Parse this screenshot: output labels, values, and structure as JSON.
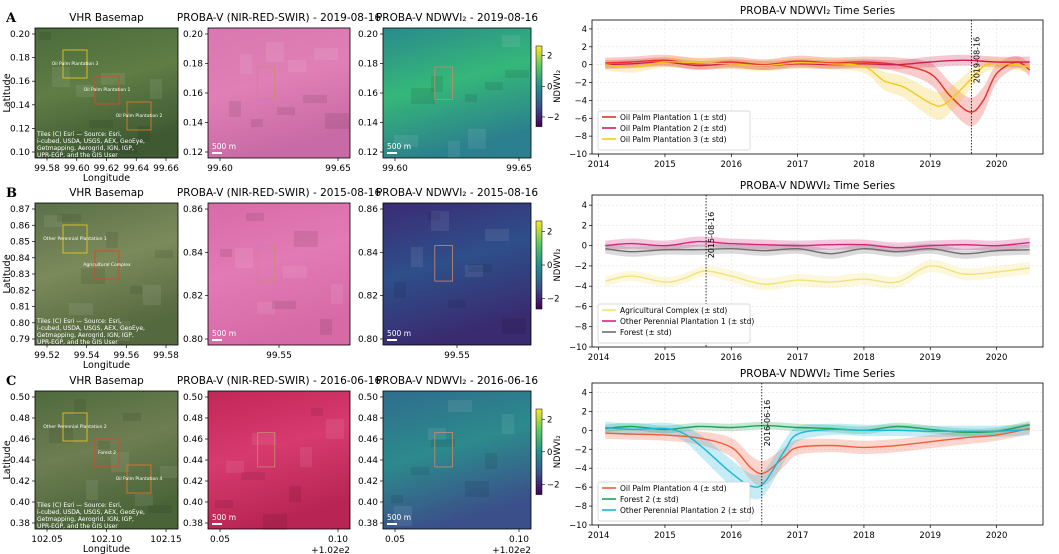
{
  "rows": [
    {
      "label": "A",
      "basemap": {
        "title": "VHR Basemap",
        "yticks": [
          "0.20",
          "0.18",
          "0.16",
          "0.14",
          "0.12",
          "0.10"
        ],
        "xticks": [
          "99.58",
          "99.60",
          "99.62",
          "99.64",
          "99.66"
        ],
        "xlabel": "Longitude",
        "ylabel": "Latitude",
        "attribution": "Tiles (C) Esri — Source: Esri, i-cubed, USDA, USGS, AEX, GeoEye, Getmapping, Aerogrid, IGN, IGP, UPR-EGP, and the GIS User Community",
        "overlay_labels": [
          "Oil Palm Plantation 3",
          "Oil Palm Plantation 1",
          "Oil Palm Plantation 2"
        ],
        "colors": {
          "top": "#4a6b3a",
          "mid": "#5f7d45",
          "bottom": "#3f5a33"
        }
      },
      "falsecolor": {
        "title": "PROBA-V (NIR-RED-SWIR) - 2019-08-16",
        "yticks": [
          "0.20",
          "0.18",
          "0.16",
          "0.14",
          "0.12"
        ],
        "xticks": [
          "99.60",
          "99.65"
        ],
        "offset": "",
        "scalebar": "500 m",
        "colors": {
          "top": "#d978b0",
          "mid": "#e07fb6",
          "bottom": "#c86aa5"
        }
      },
      "ndwvi": {
        "title": "PROBA-V NDWVI₂ - 2019-08-16",
        "yticks": [
          "0.20",
          "0.18",
          "0.16",
          "0.14",
          "0.12"
        ],
        "xticks": [
          "99.60",
          "99.65"
        ],
        "offset": "",
        "scalebar": "500 m",
        "colors": {
          "top": "#2a8a8c",
          "mid": "#35b779",
          "bottom": "#2c7f8e"
        }
      },
      "colorbar": {
        "label": "NDWVI₂",
        "ticks": [
          "2",
          "0",
          "−2"
        ]
      }
    },
    {
      "label": "B",
      "basemap": {
        "title": "VHR Basemap",
        "yticks": [
          "0.87",
          "0.86",
          "0.85",
          "0.84",
          "0.83",
          "0.82",
          "0.81",
          "0.80",
          "0.79"
        ],
        "xticks": [
          "99.52",
          "99.54",
          "99.56",
          "99.58"
        ],
        "xlabel": "Longitude",
        "ylabel": "Latitude",
        "attribution": "Tiles (C) Esri — Source: Esri, i-cubed, USDA, USGS, AEX, GeoEye, Getmapping, Aerogrid, IGN, IGP, UPR-EGP, and the GIS User Community",
        "overlay_labels": [
          "Other Perennial Plantation 1",
          "Agricultural Complex"
        ],
        "colors": {
          "top": "#5a7048",
          "mid": "#7b8a5a",
          "bottom": "#55693f"
        }
      },
      "falsecolor": {
        "title": "PROBA-V (NIR-RED-SWIR) - 2015-08-16",
        "yticks": [
          "0.86",
          "0.84",
          "0.82",
          "0.80"
        ],
        "xticks": [
          "99.55"
        ],
        "offset": "",
        "scalebar": "500 m",
        "colors": {
          "top": "#d86aa8",
          "mid": "#e27ab5",
          "bottom": "#d66aa6"
        }
      },
      "ndwvi": {
        "title": "PROBA-V NDWVI₂ - 2015-08-16",
        "yticks": [
          "0.86",
          "0.84",
          "0.82",
          "0.80"
        ],
        "xticks": [
          "99.55"
        ],
        "offset": "",
        "scalebar": "500 m",
        "colors": {
          "top": "#3b2b74",
          "mid": "#2e4f8a",
          "bottom": "#3a2a70"
        }
      },
      "colorbar": {
        "label": "NDWVI₂",
        "ticks": [
          "2",
          "0",
          "−2"
        ]
      }
    },
    {
      "label": "C",
      "basemap": {
        "title": "VHR Basemap",
        "yticks": [
          "0.50",
          "0.48",
          "0.46",
          "0.44",
          "0.42",
          "0.40",
          "0.38"
        ],
        "xticks": [
          "102.05",
          "102.10",
          "102.15"
        ],
        "xlabel": "Longitude",
        "ylabel": "Latitude",
        "attribution": "Tiles (C) Esri — Source: Esri, i-cubed, USDA, USGS, AEX, GeoEye, Getmapping, Aerogrid, IGN, IGP, UPR-EGP, and the GIS User Community",
        "overlay_labels": [
          "Other Perennial Plantation 2",
          "Forest 2",
          "Oil Palm Plantation 4"
        ],
        "colors": {
          "top": "#4f6a3c",
          "mid": "#6d7e52",
          "bottom": "#4a6438"
        }
      },
      "falsecolor": {
        "title": "PROBA-V (NIR-RED-SWIR) - 2016-06-16",
        "yticks": [
          "0.50",
          "0.48",
          "0.46",
          "0.44",
          "0.42",
          "0.40",
          "0.38"
        ],
        "xticks": [
          "0.05",
          "0.10"
        ],
        "offset": "+1.02e2",
        "scalebar": "500 m",
        "colors": {
          "top": "#c2275a",
          "mid": "#d63a6e",
          "bottom": "#b82555"
        }
      },
      "ndwvi": {
        "title": "PROBA-V NDWVI₂ - 2016-06-16",
        "yticks": [
          "0.50",
          "0.48",
          "0.46",
          "0.44",
          "0.42",
          "0.40",
          "0.38"
        ],
        "xticks": [
          "0.05",
          "0.10"
        ],
        "offset": "+1.02e2",
        "scalebar": "500 m",
        "colors": {
          "top": "#2f6d8e",
          "mid": "#2c8a8c",
          "bottom": "#3b4f8a"
        }
      },
      "colorbar": {
        "label": "NDWVI₂",
        "ticks": [
          "2",
          "0",
          "−2"
        ]
      }
    }
  ],
  "chart_data": [
    {
      "type": "line",
      "title": "PROBA-V NDWVI₂ Time Series",
      "xlim": [
        2013.9,
        2020.7
      ],
      "ylim": [
        -10,
        5
      ],
      "xticks": [
        2014,
        2015,
        2016,
        2017,
        2018,
        2019,
        2020
      ],
      "yticks": [
        -10,
        -8,
        -6,
        -4,
        -2,
        0,
        2,
        4
      ],
      "grid": true,
      "legend_position": "bottom-left",
      "vline": {
        "x": 2019.62,
        "label": "2019-08-16"
      },
      "series": [
        {
          "name": "Oil Palm Plantation 1 (± std)",
          "color": "#e8312a",
          "x": [
            2014.1,
            2014.5,
            2015.0,
            2015.5,
            2016.0,
            2016.5,
            2017.0,
            2017.5,
            2018.0,
            2018.5,
            2019.0,
            2019.3,
            2019.6,
            2019.8,
            2020.0,
            2020.3,
            2020.5
          ],
          "y": [
            0.2,
            0.3,
            0.5,
            0.1,
            0.3,
            0.0,
            0.4,
            0.2,
            0.3,
            0.0,
            -1.0,
            -3.5,
            -5.3,
            -4.0,
            -1.0,
            0.3,
            -0.6
          ],
          "std": [
            0.6,
            0.6,
            0.6,
            0.6,
            0.6,
            0.6,
            0.6,
            0.6,
            0.6,
            0.8,
            1.2,
            1.5,
            1.6,
            1.5,
            1.0,
            0.7,
            0.7
          ]
        },
        {
          "name": "Oil Palm Plantation 2 (± std)",
          "color": "#d1204f",
          "x": [
            2014.1,
            2014.5,
            2015.0,
            2015.5,
            2016.0,
            2016.5,
            2017.0,
            2017.5,
            2018.0,
            2018.5,
            2019.0,
            2019.5,
            2020.0,
            2020.5
          ],
          "y": [
            0.0,
            0.1,
            0.3,
            -0.1,
            0.1,
            -0.1,
            0.1,
            0.0,
            0.1,
            0.0,
            0.3,
            0.5,
            0.3,
            0.3
          ],
          "std": [
            0.5,
            0.5,
            0.5,
            0.5,
            0.5,
            0.5,
            0.5,
            0.5,
            0.5,
            0.5,
            0.6,
            0.6,
            0.6,
            0.6
          ]
        },
        {
          "name": "Oil Palm Plantation 3 (± std)",
          "color": "#f2c91c",
          "x": [
            2014.1,
            2014.5,
            2015.0,
            2015.5,
            2016.0,
            2016.5,
            2017.0,
            2017.5,
            2018.0,
            2018.3,
            2018.6,
            2019.0,
            2019.2,
            2019.5,
            2019.8,
            2020.0,
            2020.3,
            2020.5
          ],
          "y": [
            0.0,
            -0.3,
            0.3,
            0.2,
            0.1,
            -0.1,
            0.2,
            0.1,
            -0.2,
            -1.8,
            -2.5,
            -4.3,
            -4.5,
            -2.5,
            -0.2,
            0.1,
            0.0,
            -0.3
          ],
          "std": [
            0.6,
            0.6,
            0.6,
            0.6,
            0.6,
            0.6,
            0.6,
            0.6,
            0.7,
            1.0,
            1.2,
            1.5,
            1.5,
            1.2,
            0.8,
            0.6,
            0.6,
            0.6
          ]
        }
      ]
    },
    {
      "type": "line",
      "title": "PROBA-V NDWVI₂ Time Series",
      "xlim": [
        2013.9,
        2020.7
      ],
      "ylim": [
        -10,
        5
      ],
      "xticks": [
        2014,
        2015,
        2016,
        2017,
        2018,
        2019,
        2020
      ],
      "yticks": [
        -10,
        -8,
        -6,
        -4,
        -2,
        0,
        2,
        4
      ],
      "grid": true,
      "legend_position": "bottom-left",
      "vline": {
        "x": 2015.62,
        "label": "2015-08-16"
      },
      "series": [
        {
          "name": "Agricultural Complex (± std)",
          "color": "#f3e27a",
          "x": [
            2014.1,
            2014.5,
            2015.0,
            2015.3,
            2015.6,
            2016.0,
            2016.5,
            2017.0,
            2017.5,
            2018.0,
            2018.5,
            2019.0,
            2019.5,
            2020.0,
            2020.5
          ],
          "y": [
            -3.5,
            -3.0,
            -3.6,
            -3.2,
            -2.5,
            -3.0,
            -3.8,
            -3.4,
            -3.6,
            -3.3,
            -3.6,
            -2.0,
            -2.8,
            -2.6,
            -2.2
          ],
          "std": [
            0.5,
            0.5,
            0.5,
            0.5,
            0.5,
            0.6,
            0.6,
            0.6,
            0.6,
            0.6,
            0.6,
            0.6,
            0.6,
            0.6,
            0.6
          ]
        },
        {
          "name": "Other Perennial Plantation 1 (± std)",
          "color": "#d3277d",
          "x": [
            2014.1,
            2014.5,
            2015.0,
            2015.5,
            2016.0,
            2016.5,
            2017.0,
            2017.5,
            2018.0,
            2018.5,
            2019.0,
            2019.5,
            2020.0,
            2020.5
          ],
          "y": [
            0.0,
            0.2,
            0.0,
            0.4,
            0.2,
            0.1,
            0.0,
            0.1,
            0.1,
            -0.2,
            0.0,
            0.1,
            0.0,
            0.3
          ],
          "std": [
            0.5,
            0.5,
            0.5,
            0.5,
            0.5,
            0.5,
            0.5,
            0.5,
            0.5,
            0.5,
            0.5,
            0.5,
            0.5,
            0.5
          ]
        },
        {
          "name": "Forest (± std)",
          "color": "#6e6e6e",
          "x": [
            2014.1,
            2014.5,
            2015.0,
            2015.5,
            2016.0,
            2016.5,
            2017.0,
            2017.5,
            2018.0,
            2018.5,
            2019.0,
            2019.5,
            2020.0,
            2020.5
          ],
          "y": [
            -0.3,
            -0.6,
            -0.4,
            -0.4,
            -0.3,
            -0.5,
            -0.3,
            -0.8,
            -0.3,
            -0.6,
            -0.3,
            -0.8,
            -0.5,
            -0.4
          ],
          "std": [
            0.5,
            0.5,
            0.5,
            0.5,
            0.5,
            0.5,
            0.5,
            0.5,
            0.5,
            0.5,
            0.5,
            0.5,
            0.5,
            0.5
          ]
        }
      ]
    },
    {
      "type": "line",
      "title": "PROBA-V NDWVI₂ Time Series",
      "xlim": [
        2013.9,
        2020.7
      ],
      "ylim": [
        -10,
        5
      ],
      "xticks": [
        2014,
        2015,
        2016,
        2017,
        2018,
        2019,
        2020
      ],
      "yticks": [
        -10,
        -8,
        -6,
        -4,
        -2,
        0,
        2,
        4
      ],
      "grid": true,
      "legend_position": "bottom-left",
      "vline": {
        "x": 2016.46,
        "label": "2016-06-16"
      },
      "series": [
        {
          "name": "Oil Palm Plantation 4 (± std)",
          "color": "#f25c3a",
          "x": [
            2014.1,
            2014.5,
            2015.0,
            2015.5,
            2016.0,
            2016.3,
            2016.5,
            2016.8,
            2017.0,
            2017.5,
            2018.0,
            2018.5,
            2019.0,
            2019.5,
            2020.0,
            2020.5
          ],
          "y": [
            -0.3,
            -0.4,
            -0.5,
            -0.8,
            -1.8,
            -4.0,
            -4.5,
            -2.8,
            -1.8,
            -1.6,
            -1.8,
            -1.6,
            -1.2,
            -0.8,
            -0.5,
            0.2
          ],
          "std": [
            0.6,
            0.6,
            0.6,
            0.7,
            1.0,
            1.3,
            1.3,
            1.0,
            0.8,
            0.7,
            0.7,
            0.7,
            0.7,
            0.7,
            0.6,
            0.6
          ]
        },
        {
          "name": "Forest 2 (± std)",
          "color": "#1fa25c",
          "x": [
            2014.1,
            2014.5,
            2015.0,
            2015.5,
            2016.0,
            2016.5,
            2017.0,
            2017.5,
            2018.0,
            2018.5,
            2019.0,
            2019.5,
            2020.0,
            2020.5
          ],
          "y": [
            0.2,
            0.4,
            0.1,
            0.4,
            0.3,
            0.5,
            0.3,
            0.2,
            0.0,
            0.4,
            0.1,
            -0.2,
            -0.1,
            0.6
          ],
          "std": [
            0.4,
            0.4,
            0.4,
            0.4,
            0.4,
            0.4,
            0.4,
            0.4,
            0.4,
            0.4,
            0.4,
            0.4,
            0.4,
            0.4
          ]
        },
        {
          "name": "Other Perennial Plantation 2 (± std)",
          "color": "#1ab6d8",
          "x": [
            2014.1,
            2014.5,
            2015.0,
            2015.3,
            2015.6,
            2016.0,
            2016.3,
            2016.5,
            2016.8,
            2017.0,
            2017.5,
            2018.0,
            2018.5,
            2019.0,
            2019.5,
            2020.0,
            2020.5
          ],
          "y": [
            0.3,
            0.1,
            0.2,
            -0.4,
            -2.0,
            -4.5,
            -5.9,
            -5.5,
            -2.2,
            -0.4,
            0.1,
            0.0,
            0.0,
            -0.1,
            -0.1,
            -0.1,
            0.1
          ],
          "std": [
            0.6,
            0.6,
            0.6,
            0.8,
            1.2,
            1.4,
            1.3,
            1.3,
            1.1,
            0.8,
            0.6,
            0.6,
            0.6,
            0.6,
            0.6,
            0.6,
            0.6
          ]
        }
      ]
    }
  ]
}
